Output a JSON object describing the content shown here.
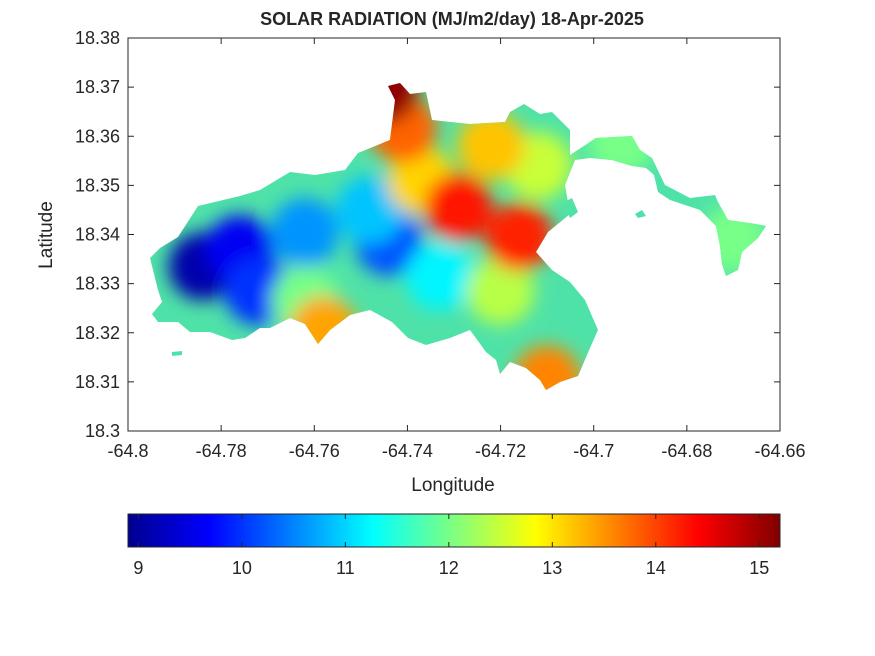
{
  "chart_data": {
    "type": "heatmap",
    "title": "SOLAR RADIATION (MJ/m2/day) 18-Apr-2025",
    "xlabel": "Longitude",
    "ylabel": "Latitude",
    "xlim": [
      -64.8,
      -64.66
    ],
    "ylim": [
      18.3,
      18.38
    ],
    "xticks": [
      -64.8,
      -64.78,
      -64.76,
      -64.74,
      -64.72,
      -64.7,
      -64.68,
      -64.66
    ],
    "xtick_labels": [
      "-64.8",
      "-64.78",
      "-64.76",
      "-64.74",
      "-64.72",
      "-64.7",
      "-64.68",
      "-64.66"
    ],
    "yticks": [
      18.3,
      18.31,
      18.32,
      18.33,
      18.34,
      18.35,
      18.36,
      18.37,
      18.38
    ],
    "ytick_labels": [
      "18.3",
      "18.31",
      "18.32",
      "18.33",
      "18.34",
      "18.35",
      "18.36",
      "18.37",
      "18.38"
    ],
    "colorbar": {
      "orientation": "horizontal",
      "location": "below",
      "colormap": "jet",
      "range": [
        8.9,
        15.2
      ],
      "ticks": [
        9,
        10,
        11,
        12,
        13,
        14,
        15
      ],
      "tick_labels": [
        "9",
        "10",
        "11",
        "12",
        "13",
        "14",
        "15"
      ]
    },
    "grid": false,
    "regions": [
      {
        "lon": -64.784,
        "lat": 18.3335,
        "value": 9.1
      },
      {
        "lon": -64.776,
        "lat": 18.337,
        "value": 9.6
      },
      {
        "lon": -64.772,
        "lat": 18.3285,
        "value": 10.0
      },
      {
        "lon": -64.762,
        "lat": 18.3405,
        "value": 10.6
      },
      {
        "lon": -64.744,
        "lat": 18.3385,
        "value": 10.2
      },
      {
        "lon": -64.748,
        "lat": 18.345,
        "value": 10.9
      },
      {
        "lon": -64.733,
        "lat": 18.3315,
        "value": 11.2
      },
      {
        "lon": -64.762,
        "lat": 18.3265,
        "value": 12.0
      },
      {
        "lon": -64.72,
        "lat": 18.3285,
        "value": 12.4
      },
      {
        "lon": -64.712,
        "lat": 18.354,
        "value": 12.5
      },
      {
        "lon": -64.694,
        "lat": 18.359,
        "value": 12.0
      },
      {
        "lon": -64.67,
        "lat": 18.339,
        "value": 12.0
      },
      {
        "lon": -64.737,
        "lat": 18.351,
        "value": 13.1
      },
      {
        "lon": -64.722,
        "lat": 18.358,
        "value": 13.2
      },
      {
        "lon": -64.729,
        "lat": 18.3455,
        "value": 14.3
      },
      {
        "lon": -64.741,
        "lat": 18.3615,
        "value": 13.8
      },
      {
        "lon": -64.716,
        "lat": 18.3395,
        "value": 14.2
      },
      {
        "lon": -64.745,
        "lat": 18.3695,
        "value": 15.1
      },
      {
        "lon": -64.758,
        "lat": 18.3205,
        "value": 13.4
      },
      {
        "lon": -64.71,
        "lat": 18.3105,
        "value": 13.6
      }
    ]
  },
  "colors": {
    "axes_box": "#262626",
    "text": "#262626",
    "background": "#ffffff"
  }
}
